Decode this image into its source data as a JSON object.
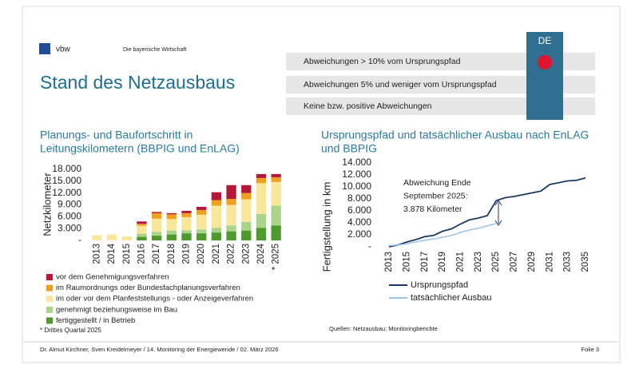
{
  "header": {
    "logo": "vbw",
    "tagline": "Die bayerische Wirtschaft",
    "title": "Stand des Netzausbaus"
  },
  "status_legend": {
    "column_header": "DE",
    "rows": [
      {
        "label": "Abweichungen > 10% vom Ursprungspfad",
        "marker_color": "#e0142c"
      },
      {
        "label": "Abweichungen  5% und weniger vom Ursprungspfad"
      },
      {
        "label": "Keine bzw. positive Abweichungen"
      }
    ]
  },
  "chart_data": [
    {
      "type": "bar",
      "stacked": true,
      "title": [
        "Planungs- und Baufortschritt in",
        "Leitungskilometern (BBPIG und EnLAG)"
      ],
      "y_label": "Netzkilometer",
      "categories": [
        "2013",
        "2014",
        "2015",
        "2016",
        "2017",
        "2018",
        "2019",
        "2020",
        "2021",
        "2022",
        "2023",
        "2024",
        "* 2025"
      ],
      "series": [
        {
          "name": "vor dem Genehmigungsverfahren",
          "color": "#b5173a",
          "values": [
            0,
            0,
            0,
            600,
            300,
            300,
            600,
            800,
            2000,
            3500,
            2000,
            1000,
            800
          ]
        },
        {
          "name": "im Raumordnungs oder Bundesfachplanungsverfahren",
          "color": "#f0a020",
          "values": [
            0,
            0,
            0,
            500,
            1400,
            1200,
            1000,
            1200,
            1400,
            1500,
            1600,
            1300,
            1200
          ]
        },
        {
          "name": "im oder vor dem Planfeststellungs - oder Anzeigeverfahren",
          "color": "#f8e79a",
          "values": [
            1300,
            1500,
            1000,
            2000,
            3300,
            2900,
            3300,
            3700,
            5600,
            5200,
            5700,
            7800,
            6000
          ]
        },
        {
          "name": "genehmigt beziehungsweise im Bau",
          "color": "#a9d48a",
          "values": [
            0,
            0,
            0,
            800,
            1000,
            1000,
            800,
            1000,
            1200,
            1500,
            2200,
            3500,
            5000
          ]
        },
        {
          "name": "fertiggestellt / in Betrieb",
          "color": "#4e9a2e",
          "values": [
            0,
            0,
            0,
            900,
            1200,
            1500,
            1800,
            1800,
            2000,
            2300,
            2500,
            3200,
            3800
          ]
        }
      ],
      "ylim": [
        0,
        18000
      ],
      "yticks": [
        {
          "value": 0,
          "label": "-"
        },
        {
          "value": 3000,
          "label": "3.000"
        },
        {
          "value": 6000,
          "label": "6.000"
        },
        {
          "value": 9000,
          "label": "9.000"
        },
        {
          "value": 12000,
          "label": "12.000"
        },
        {
          "value": 15000,
          "label": "15.000"
        },
        {
          "value": 18000,
          "label": "18.000"
        }
      ],
      "grid": false,
      "note": "* Drittes Quartal 2025"
    },
    {
      "type": "line",
      "title": [
        "Ursprungspfad und tatsächlicher Ausbau nach EnLAG",
        "und BBPIG"
      ],
      "y_label": "Fertigstellung in km",
      "x": [
        2013,
        2014,
        2015,
        2016,
        2017,
        2018,
        2019,
        2020,
        2021,
        2022,
        2023,
        2024,
        2025,
        2026,
        2027,
        2028,
        2029,
        2030,
        2031,
        2032,
        2033,
        2034,
        2035
      ],
      "series": [
        {
          "name": "Ursprungspfad",
          "color": "#1f3a5f",
          "values": [
            0,
            300,
            800,
            1200,
            1700,
            1900,
            2600,
            3000,
            3800,
            4500,
            4800,
            5200,
            7700,
            8200,
            8400,
            8700,
            9000,
            9300,
            10400,
            10700,
            11000,
            11100,
            11500
          ]
        },
        {
          "name": "tatsächlicher Ausbau",
          "color": "#9dc3e6",
          "values": [
            200,
            300,
            500,
            800,
            1100,
            1300,
            1600,
            1900,
            2400,
            2800,
            3100,
            3500,
            3900,
            null,
            null,
            null,
            null,
            null,
            null,
            null,
            null,
            null,
            null
          ]
        }
      ],
      "xlim": [
        2013,
        2035
      ],
      "xticks": [
        2013,
        2015,
        2017,
        2019,
        2021,
        2023,
        2025,
        2027,
        2029,
        2031,
        2033,
        2035
      ],
      "ylim": [
        0,
        14000
      ],
      "yticks": [
        {
          "value": 0,
          "label": "-"
        },
        {
          "value": 2000,
          "label": "2.000"
        },
        {
          "value": 4000,
          "label": "4.000"
        },
        {
          "value": 6000,
          "label": "6.000"
        },
        {
          "value": 8000,
          "label": "8.000"
        },
        {
          "value": 10000,
          "label": "10.000"
        },
        {
          "value": 12000,
          "label": "12.000"
        },
        {
          "value": 14000,
          "label": "14.000"
        }
      ],
      "grid": false,
      "annotation": [
        "Abweichung Ende",
        "September 2025:",
        "3.878 Kilometer"
      ],
      "source": "Quellen: Netzausbau; Monitoringberichte"
    }
  ],
  "footer": {
    "authors": "Dr. Almut Kirchner, Sven Kreidelmeyer /  14. Monitoring der Energiewende /  02. März 2026",
    "page": "Folie 3"
  }
}
